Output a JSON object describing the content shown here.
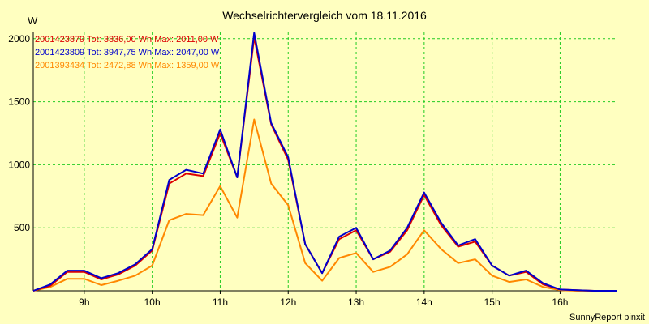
{
  "chart_data": {
    "type": "line",
    "title": "Wechselrichtervergleich vom 18.11.2016",
    "ylabel": "W",
    "xlabel": "",
    "footer": "SunnyReport pinxit",
    "ylim": [
      0,
      2050
    ],
    "xlim": [
      8.25,
      16.83
    ],
    "grid": true,
    "legend_position": "top-left",
    "y_ticks": [
      500,
      1000,
      1500,
      2000
    ],
    "x_ticks": [
      {
        "value": 9,
        "label": "9h"
      },
      {
        "value": 10,
        "label": "10h"
      },
      {
        "value": 11,
        "label": "11h"
      },
      {
        "value": 12,
        "label": "12h"
      },
      {
        "value": 13,
        "label": "13h"
      },
      {
        "value": 14,
        "label": "14h"
      },
      {
        "value": 15,
        "label": "15h"
      },
      {
        "value": 16,
        "label": "16h"
      }
    ],
    "x": [
      8.25,
      8.5,
      8.75,
      9.0,
      9.25,
      9.5,
      9.75,
      10.0,
      10.25,
      10.5,
      10.75,
      11.0,
      11.25,
      11.5,
      11.75,
      12.0,
      12.25,
      12.5,
      12.75,
      13.0,
      13.25,
      13.5,
      13.75,
      14.0,
      14.25,
      14.5,
      14.75,
      15.0,
      15.25,
      15.5,
      15.75,
      16.0,
      16.25,
      16.5,
      16.75,
      16.83
    ],
    "series": [
      {
        "name": "2001423879",
        "legend": "2001423879 Tot: 3836,00 Wh Max: 2011,00 W",
        "color": "#DD0000",
        "values": [
          0,
          40,
          150,
          150,
          90,
          130,
          200,
          320,
          850,
          930,
          910,
          1250,
          900,
          2011,
          1320,
          1040,
          370,
          140,
          410,
          480,
          250,
          310,
          480,
          760,
          520,
          350,
          390,
          200,
          120,
          150,
          50,
          10,
          5,
          0,
          0,
          0
        ]
      },
      {
        "name": "2001423809",
        "legend": "2001423809 Tot: 3947,75 Wh Max: 2047,00 W",
        "color": "#0000CC",
        "values": [
          0,
          50,
          160,
          160,
          100,
          140,
          210,
          330,
          880,
          960,
          930,
          1280,
          900,
          2047,
          1330,
          1060,
          370,
          140,
          430,
          500,
          250,
          320,
          500,
          780,
          540,
          360,
          410,
          200,
          120,
          160,
          60,
          10,
          5,
          0,
          0,
          0
        ]
      },
      {
        "name": "2001393434",
        "legend": "2001393434 Tot: 2472,88 Wh Max: 1359,00 W",
        "color": "#FF8800",
        "values": [
          0,
          30,
          95,
          95,
          45,
          80,
          120,
          200,
          560,
          610,
          600,
          830,
          580,
          1359,
          850,
          680,
          220,
          80,
          260,
          300,
          150,
          190,
          290,
          480,
          330,
          220,
          250,
          120,
          70,
          90,
          30,
          5,
          0,
          0,
          0,
          0
        ]
      }
    ]
  }
}
